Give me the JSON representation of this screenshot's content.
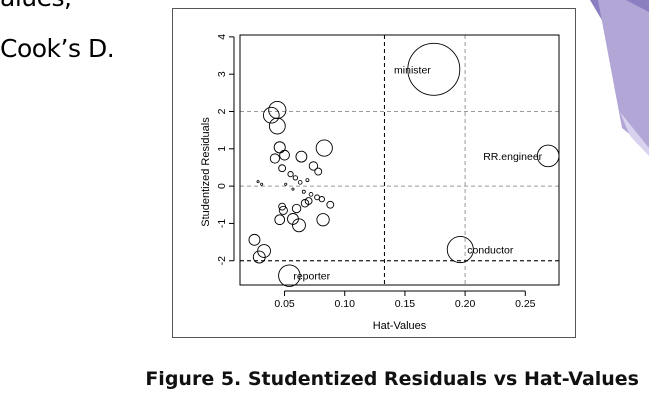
{
  "slide": {
    "line1": "alues,",
    "line2": "Cook’s D."
  },
  "caption": "Figure 5. Studentized Residuals vs Hat-Values",
  "colors": {
    "accent_purple": "#8c7fc1",
    "accent_lavender": "#b2a6d6",
    "reference_line": "#999999",
    "cutoff_line": "#000000"
  },
  "chart_data": {
    "type": "scatter",
    "title": "",
    "xlabel": "Hat-Values",
    "ylabel": "Studentized Residuals",
    "xlim": [
      0.013,
      0.278
    ],
    "ylim": [
      -2.65,
      4.05
    ],
    "xticks": [
      0.05,
      0.1,
      0.15,
      0.2,
      0.25
    ],
    "xtick_labels": [
      "0.05",
      "0.10",
      "0.15",
      "0.20",
      "0.25"
    ],
    "yticks": [
      -2,
      -1,
      0,
      1,
      2,
      3,
      4
    ],
    "ytick_labels": [
      "-2",
      "-1",
      "0",
      "1",
      "2",
      "3",
      "4"
    ],
    "hlines_dashed_gray": [
      -2,
      0,
      2
    ],
    "vlines_dashed_gray": [
      0.2
    ],
    "hlines_dashed_black": [
      -2
    ],
    "vlines_dashed_black": [
      0.133
    ],
    "bubble_size_measure": "Cook's D",
    "points": [
      {
        "x": 0.174,
        "y": 3.13,
        "cooksd": 0.566,
        "label": "minister"
      },
      {
        "x": 0.269,
        "y": 0.81,
        "cooksd": 0.098,
        "label": "RR.engineer"
      },
      {
        "x": 0.196,
        "y": -1.7,
        "cooksd": 0.143,
        "label": "conductor"
      },
      {
        "x": 0.054,
        "y": -2.4,
        "cooksd": 0.097,
        "label": "reporter"
      },
      {
        "x": 0.044,
        "y": 2.04,
        "cooksd": 0.062
      },
      {
        "x": 0.039,
        "y": 1.9,
        "cooksd": 0.052
      },
      {
        "x": 0.044,
        "y": 1.61,
        "cooksd": 0.053
      },
      {
        "x": 0.083,
        "y": 1.02,
        "cooksd": 0.055
      },
      {
        "x": 0.046,
        "y": 1.04,
        "cooksd": 0.026
      },
      {
        "x": 0.05,
        "y": 0.83,
        "cooksd": 0.02
      },
      {
        "x": 0.042,
        "y": 0.74,
        "cooksd": 0.018
      },
      {
        "x": 0.064,
        "y": 0.79,
        "cooksd": 0.025
      },
      {
        "x": 0.074,
        "y": 0.54,
        "cooksd": 0.015
      },
      {
        "x": 0.078,
        "y": 0.39,
        "cooksd": 0.01
      },
      {
        "x": 0.048,
        "y": 0.48,
        "cooksd": 0.01
      },
      {
        "x": 0.055,
        "y": 0.32,
        "cooksd": 0.006
      },
      {
        "x": 0.059,
        "y": 0.22,
        "cooksd": 0.004
      },
      {
        "x": 0.063,
        "y": 0.1,
        "cooksd": 0.003
      },
      {
        "x": 0.069,
        "y": 0.16,
        "cooksd": 0.002
      },
      {
        "x": 0.051,
        "y": 0.05,
        "cooksd": 0.001
      },
      {
        "x": 0.028,
        "y": 0.12,
        "cooksd": 0.001
      },
      {
        "x": 0.031,
        "y": 0.05,
        "cooksd": 0.001
      },
      {
        "x": 0.057,
        "y": -0.08,
        "cooksd": 0.001
      },
      {
        "x": 0.066,
        "y": -0.15,
        "cooksd": 0.002
      },
      {
        "x": 0.072,
        "y": -0.22,
        "cooksd": 0.003
      },
      {
        "x": 0.077,
        "y": -0.3,
        "cooksd": 0.005
      },
      {
        "x": 0.081,
        "y": -0.35,
        "cooksd": 0.006
      },
      {
        "x": 0.07,
        "y": -0.4,
        "cooksd": 0.01
      },
      {
        "x": 0.067,
        "y": -0.46,
        "cooksd": 0.012
      },
      {
        "x": 0.088,
        "y": -0.5,
        "cooksd": 0.01
      },
      {
        "x": 0.048,
        "y": -0.55,
        "cooksd": 0.01
      },
      {
        "x": 0.049,
        "y": -0.65,
        "cooksd": 0.014
      },
      {
        "x": 0.06,
        "y": -0.6,
        "cooksd": 0.015
      },
      {
        "x": 0.046,
        "y": -0.9,
        "cooksd": 0.02
      },
      {
        "x": 0.057,
        "y": -0.88,
        "cooksd": 0.025
      },
      {
        "x": 0.062,
        "y": -1.05,
        "cooksd": 0.035
      },
      {
        "x": 0.082,
        "y": -0.9,
        "cooksd": 0.032
      },
      {
        "x": 0.025,
        "y": -1.44,
        "cooksd": 0.025
      },
      {
        "x": 0.033,
        "y": -1.74,
        "cooksd": 0.035
      },
      {
        "x": 0.029,
        "y": -1.9,
        "cooksd": 0.03
      }
    ]
  }
}
